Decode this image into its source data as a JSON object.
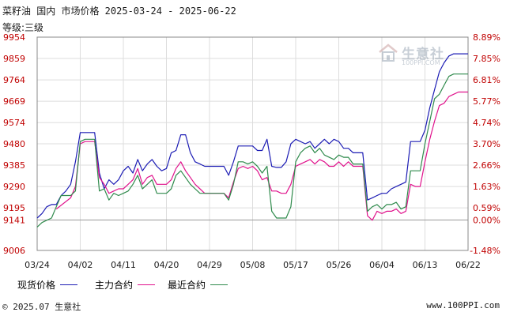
{
  "header": {
    "title": "菜籽油 国内 市场价格 2025-03-24 - 2025-06-22",
    "subtitle": "等级:三级"
  },
  "watermark": {
    "name": "生意社",
    "url": "100PPI.COM"
  },
  "footer": {
    "copyright": "© 2025.07 生意社",
    "site": "www.100PPI.com"
  },
  "colors": {
    "spot": "#1c1cb4",
    "main_contract": "#e0128c",
    "recent_contract": "#2f8a4c",
    "baseline": "#999999"
  },
  "chart_data": {
    "type": "line",
    "title": "菜籽油 国内 市场价格 2025-03-24 - 2025-06-22",
    "subtitle": "等级:三级",
    "x_range": [
      "2025-03-24",
      "2025-06-22"
    ],
    "x_ticks": [
      "03/24",
      "04/02",
      "04/11",
      "04/20",
      "04/29",
      "05/08",
      "05/17",
      "05/26",
      "06/04",
      "06/13",
      "06/22"
    ],
    "y_ticks_left": [
      "9954",
      "9859",
      "9764",
      "9669",
      "9574",
      "9480",
      "9385",
      "9290",
      "9195",
      "9141",
      "9006"
    ],
    "y_ticks_right": [
      "8.89%",
      "7.85%",
      "6.81%",
      "5.77%",
      "4.74%",
      "3.70%",
      "2.66%",
      "1.63%",
      "0.59%",
      "0.00%",
      "-1.48%"
    ],
    "ylim": [
      9006,
      9954
    ],
    "baseline": 9141,
    "legend_position": "bottom",
    "series": [
      {
        "name": "现货价格",
        "color": "#1c1cb4",
        "points": [
          [
            "03/24",
            9150
          ],
          [
            "03/25",
            9170
          ],
          [
            "03/26",
            9200
          ],
          [
            "03/27",
            9210
          ],
          [
            "03/28",
            9210
          ],
          [
            "03/29",
            9250
          ],
          [
            "03/30",
            9270
          ],
          [
            "03/31",
            9300
          ],
          [
            "04/01",
            9400
          ],
          [
            "04/02",
            9530
          ],
          [
            "04/03",
            9530
          ],
          [
            "04/04",
            9530
          ],
          [
            "04/05",
            9530
          ],
          [
            "04/06",
            9350
          ],
          [
            "04/07",
            9280
          ],
          [
            "04/08",
            9320
          ],
          [
            "04/09",
            9300
          ],
          [
            "04/10",
            9320
          ],
          [
            "04/11",
            9360
          ],
          [
            "04/12",
            9380
          ],
          [
            "04/13",
            9350
          ],
          [
            "04/14",
            9410
          ],
          [
            "04/15",
            9360
          ],
          [
            "04/16",
            9390
          ],
          [
            "04/17",
            9410
          ],
          [
            "04/18",
            9380
          ],
          [
            "04/19",
            9360
          ],
          [
            "04/20",
            9370
          ],
          [
            "04/21",
            9440
          ],
          [
            "04/22",
            9450
          ],
          [
            "04/23",
            9520
          ],
          [
            "04/24",
            9520
          ],
          [
            "04/25",
            9440
          ],
          [
            "04/26",
            9400
          ],
          [
            "04/27",
            9390
          ],
          [
            "04/28",
            9380
          ],
          [
            "04/29",
            9380
          ],
          [
            "04/30",
            9380
          ],
          [
            "05/01",
            9380
          ],
          [
            "05/02",
            9380
          ],
          [
            "05/03",
            9340
          ],
          [
            "05/04",
            9400
          ],
          [
            "05/05",
            9470
          ],
          [
            "05/06",
            9470
          ],
          [
            "05/07",
            9470
          ],
          [
            "05/08",
            9470
          ],
          [
            "05/09",
            9450
          ],
          [
            "05/10",
            9450
          ],
          [
            "05/11",
            9500
          ],
          [
            "05/12",
            9380
          ],
          [
            "05/13",
            9375
          ],
          [
            "05/14",
            9375
          ],
          [
            "05/15",
            9400
          ],
          [
            "05/16",
            9480
          ],
          [
            "05/17",
            9500
          ],
          [
            "05/18",
            9490
          ],
          [
            "05/19",
            9480
          ],
          [
            "05/20",
            9490
          ],
          [
            "05/21",
            9460
          ],
          [
            "05/22",
            9480
          ],
          [
            "05/23",
            9500
          ],
          [
            "05/24",
            9480
          ],
          [
            "05/25",
            9500
          ],
          [
            "05/26",
            9490
          ],
          [
            "05/27",
            9460
          ],
          [
            "05/28",
            9460
          ],
          [
            "05/29",
            9440
          ],
          [
            "05/30",
            9440
          ],
          [
            "05/31",
            9440
          ],
          [
            "06/01",
            9230
          ],
          [
            "06/02",
            9240
          ],
          [
            "06/03",
            9250
          ],
          [
            "06/04",
            9260
          ],
          [
            "06/05",
            9260
          ],
          [
            "06/06",
            9280
          ],
          [
            "06/07",
            9290
          ],
          [
            "06/08",
            9300
          ],
          [
            "06/09",
            9310
          ],
          [
            "06/10",
            9490
          ],
          [
            "06/11",
            9490
          ],
          [
            "06/12",
            9490
          ],
          [
            "06/13",
            9540
          ],
          [
            "06/14",
            9640
          ],
          [
            "06/15",
            9720
          ],
          [
            "06/16",
            9800
          ],
          [
            "06/17",
            9840
          ],
          [
            "06/18",
            9870
          ],
          [
            "06/19",
            9880
          ],
          [
            "06/20",
            9880
          ],
          [
            "06/21",
            9880
          ],
          [
            "06/22",
            9880
          ]
        ]
      },
      {
        "name": "主力合约",
        "color": "#e0128c",
        "points": [
          [
            "03/28",
            9190
          ],
          [
            "03/31",
            9240
          ],
          [
            "04/01",
            9290
          ],
          [
            "04/02",
            9480
          ],
          [
            "04/03",
            9490
          ],
          [
            "04/04",
            9490
          ],
          [
            "04/05",
            9490
          ],
          [
            "04/06",
            9330
          ],
          [
            "04/07",
            9300
          ],
          [
            "04/08",
            9260
          ],
          [
            "04/09",
            9270
          ],
          [
            "04/10",
            9280
          ],
          [
            "04/11",
            9280
          ],
          [
            "04/12",
            9300
          ],
          [
            "04/13",
            9320
          ],
          [
            "04/14",
            9370
          ],
          [
            "04/15",
            9300
          ],
          [
            "04/16",
            9330
          ],
          [
            "04/17",
            9340
          ],
          [
            "04/18",
            9300
          ],
          [
            "04/19",
            9300
          ],
          [
            "04/20",
            9300
          ],
          [
            "04/21",
            9320
          ],
          [
            "04/22",
            9370
          ],
          [
            "04/23",
            9400
          ],
          [
            "04/24",
            9360
          ],
          [
            "04/25",
            9330
          ],
          [
            "04/26",
            9300
          ],
          [
            "04/27",
            9280
          ],
          [
            "04/28",
            9260
          ],
          [
            "04/29",
            9260
          ],
          [
            "04/30",
            9260
          ],
          [
            "05/01",
            9260
          ],
          [
            "05/02",
            9260
          ],
          [
            "05/03",
            9240
          ],
          [
            "05/04",
            9310
          ],
          [
            "05/05",
            9370
          ],
          [
            "05/06",
            9380
          ],
          [
            "05/07",
            9370
          ],
          [
            "05/08",
            9380
          ],
          [
            "05/09",
            9360
          ],
          [
            "05/10",
            9320
          ],
          [
            "05/11",
            9330
          ],
          [
            "05/12",
            9270
          ],
          [
            "05/13",
            9270
          ],
          [
            "05/14",
            9260
          ],
          [
            "05/15",
            9260
          ],
          [
            "05/16",
            9300
          ],
          [
            "05/17",
            9380
          ],
          [
            "05/18",
            9390
          ],
          [
            "05/19",
            9400
          ],
          [
            "05/20",
            9410
          ],
          [
            "05/21",
            9390
          ],
          [
            "05/22",
            9410
          ],
          [
            "05/23",
            9400
          ],
          [
            "05/24",
            9380
          ],
          [
            "05/25",
            9380
          ],
          [
            "05/26",
            9400
          ],
          [
            "05/27",
            9380
          ],
          [
            "05/28",
            9400
          ],
          [
            "05/29",
            9380
          ],
          [
            "05/30",
            9380
          ],
          [
            "05/31",
            9380
          ],
          [
            "06/01",
            9160
          ],
          [
            "06/02",
            9140
          ],
          [
            "06/03",
            9180
          ],
          [
            "06/04",
            9170
          ],
          [
            "06/05",
            9180
          ],
          [
            "06/06",
            9180
          ],
          [
            "06/07",
            9190
          ],
          [
            "06/08",
            9170
          ],
          [
            "06/09",
            9180
          ],
          [
            "06/10",
            9300
          ],
          [
            "06/11",
            9290
          ],
          [
            "06/12",
            9290
          ],
          [
            "06/13",
            9400
          ],
          [
            "06/14",
            9500
          ],
          [
            "06/15",
            9580
          ],
          [
            "06/16",
            9650
          ],
          [
            "06/17",
            9660
          ],
          [
            "06/18",
            9690
          ],
          [
            "06/19",
            9700
          ],
          [
            "06/20",
            9710
          ],
          [
            "06/21",
            9710
          ],
          [
            "06/22",
            9710
          ]
        ]
      },
      {
        "name": "最近合约",
        "color": "#2f8a4c",
        "points": [
          [
            "03/24",
            9110
          ],
          [
            "03/25",
            9130
          ],
          [
            "03/26",
            9140
          ],
          [
            "03/27",
            9150
          ],
          [
            "03/28",
            9200
          ],
          [
            "03/29",
            9250
          ],
          [
            "03/30",
            9250
          ],
          [
            "03/31",
            9250
          ],
          [
            "04/01",
            9270
          ],
          [
            "04/02",
            9490
          ],
          [
            "04/03",
            9500
          ],
          [
            "04/04",
            9500
          ],
          [
            "04/05",
            9500
          ],
          [
            "04/06",
            9270
          ],
          [
            "04/07",
            9280
          ],
          [
            "04/08",
            9230
          ],
          [
            "04/09",
            9260
          ],
          [
            "04/10",
            9250
          ],
          [
            "04/11",
            9260
          ],
          [
            "04/12",
            9270
          ],
          [
            "04/13",
            9300
          ],
          [
            "04/14",
            9340
          ],
          [
            "04/15",
            9280
          ],
          [
            "04/16",
            9300
          ],
          [
            "04/17",
            9320
          ],
          [
            "04/18",
            9260
          ],
          [
            "04/19",
            9260
          ],
          [
            "04/20",
            9260
          ],
          [
            "04/21",
            9280
          ],
          [
            "04/22",
            9340
          ],
          [
            "04/23",
            9360
          ],
          [
            "04/24",
            9330
          ],
          [
            "04/25",
            9300
          ],
          [
            "04/26",
            9280
          ],
          [
            "04/27",
            9260
          ],
          [
            "04/28",
            9260
          ],
          [
            "04/29",
            9260
          ],
          [
            "04/30",
            9260
          ],
          [
            "05/01",
            9260
          ],
          [
            "05/02",
            9260
          ],
          [
            "05/03",
            9230
          ],
          [
            "05/04",
            9300
          ],
          [
            "05/05",
            9400
          ],
          [
            "05/06",
            9400
          ],
          [
            "05/07",
            9390
          ],
          [
            "05/08",
            9400
          ],
          [
            "05/09",
            9380
          ],
          [
            "05/10",
            9350
          ],
          [
            "05/11",
            9380
          ],
          [
            "05/12",
            9180
          ],
          [
            "05/13",
            9150
          ],
          [
            "05/14",
            9150
          ],
          [
            "05/15",
            9150
          ],
          [
            "05/16",
            9200
          ],
          [
            "05/17",
            9400
          ],
          [
            "05/18",
            9440
          ],
          [
            "05/19",
            9460
          ],
          [
            "05/20",
            9470
          ],
          [
            "05/21",
            9440
          ],
          [
            "05/22",
            9460
          ],
          [
            "05/23",
            9430
          ],
          [
            "05/24",
            9420
          ],
          [
            "05/25",
            9410
          ],
          [
            "05/26",
            9430
          ],
          [
            "05/27",
            9420
          ],
          [
            "05/28",
            9420
          ],
          [
            "05/29",
            9390
          ],
          [
            "05/30",
            9390
          ],
          [
            "05/31",
            9390
          ],
          [
            "06/01",
            9180
          ],
          [
            "06/02",
            9200
          ],
          [
            "06/03",
            9210
          ],
          [
            "06/04",
            9190
          ],
          [
            "06/05",
            9210
          ],
          [
            "06/06",
            9210
          ],
          [
            "06/07",
            9220
          ],
          [
            "06/08",
            9190
          ],
          [
            "06/09",
            9200
          ],
          [
            "06/10",
            9360
          ],
          [
            "06/11",
            9360
          ],
          [
            "06/12",
            9360
          ],
          [
            "06/13",
            9480
          ],
          [
            "06/14",
            9580
          ],
          [
            "06/15",
            9680
          ],
          [
            "06/16",
            9700
          ],
          [
            "06/17",
            9740
          ],
          [
            "06/18",
            9780
          ],
          [
            "06/19",
            9790
          ],
          [
            "06/20",
            9790
          ],
          [
            "06/21",
            9790
          ],
          [
            "06/22",
            9790
          ]
        ]
      }
    ]
  }
}
